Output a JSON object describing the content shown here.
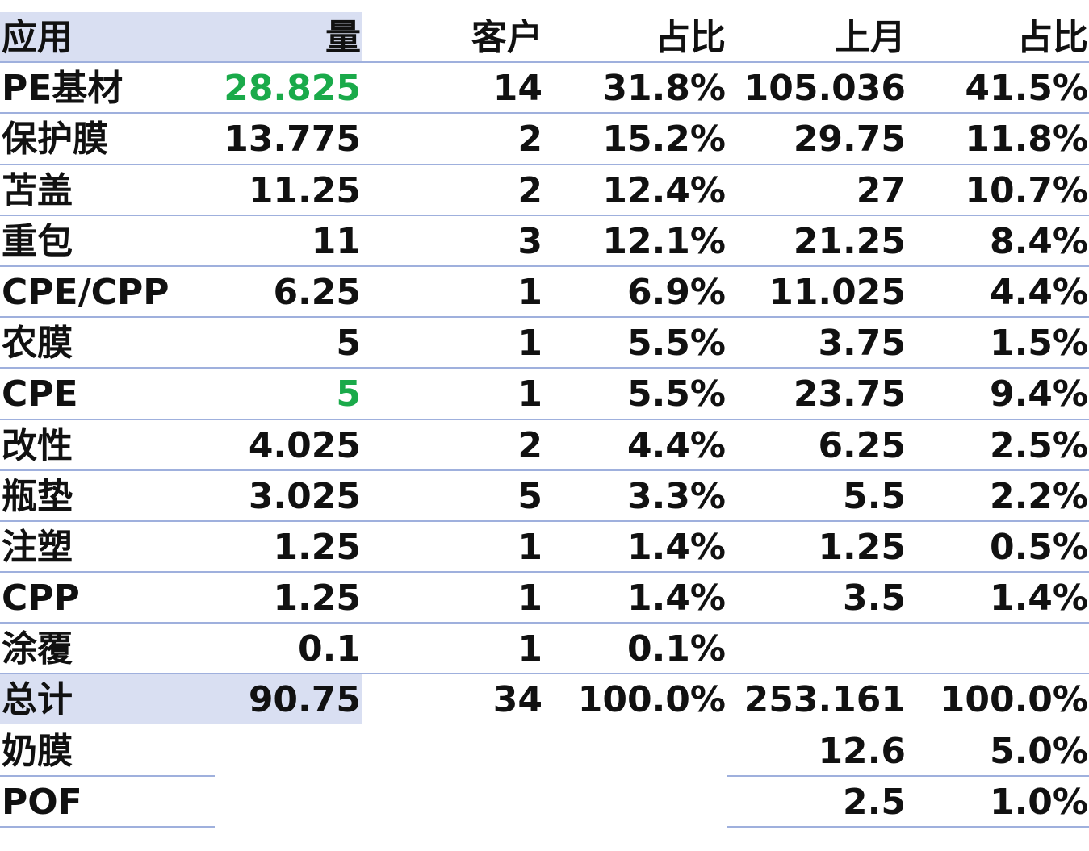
{
  "header": {
    "app": "应用",
    "volume": "量",
    "customers": "客户",
    "share": "占比",
    "last_month": "上月",
    "last_share": "占比"
  },
  "rows": [
    {
      "app": "PE基材",
      "volume": "28.825",
      "customers": "14",
      "share": "31.8%",
      "last_month": "105.036",
      "last_share": "41.5%"
    },
    {
      "app": "保护膜",
      "volume": "13.775",
      "customers": "2",
      "share": "15.2%",
      "last_month": "29.75",
      "last_share": "11.8%"
    },
    {
      "app": "苫盖",
      "volume": "11.25",
      "customers": "2",
      "share": "12.4%",
      "last_month": "27",
      "last_share": "10.7%"
    },
    {
      "app": "重包",
      "volume": "11",
      "customers": "3",
      "share": "12.1%",
      "last_month": "21.25",
      "last_share": "8.4%"
    },
    {
      "app": "CPE/CPP",
      "volume": "6.25",
      "customers": "1",
      "share": "6.9%",
      "last_month": "11.025",
      "last_share": "4.4%"
    },
    {
      "app": "农膜",
      "volume": "5",
      "customers": "1",
      "share": "5.5%",
      "last_month": "3.75",
      "last_share": "1.5%"
    },
    {
      "app": "CPE",
      "volume": "5",
      "customers": "1",
      "share": "5.5%",
      "last_month": "23.75",
      "last_share": "9.4%"
    },
    {
      "app": "改性",
      "volume": "4.025",
      "customers": "2",
      "share": "4.4%",
      "last_month": "6.25",
      "last_share": "2.5%"
    },
    {
      "app": "瓶垫",
      "volume": "3.025",
      "customers": "5",
      "share": "3.3%",
      "last_month": "5.5",
      "last_share": "2.2%"
    },
    {
      "app": "注塑",
      "volume": "1.25",
      "customers": "1",
      "share": "1.4%",
      "last_month": "1.25",
      "last_share": "0.5%"
    },
    {
      "app": "CPP",
      "volume": "1.25",
      "customers": "1",
      "share": "1.4%",
      "last_month": "3.5",
      "last_share": "1.4%"
    },
    {
      "app": "涂覆",
      "volume": "0.1",
      "customers": "1",
      "share": "0.1%",
      "last_month": "",
      "last_share": ""
    }
  ],
  "total": {
    "app": "总计",
    "volume": "90.75",
    "customers": "34",
    "share": "100.0%",
    "last_month": "253.161",
    "last_share": "100.0%"
  },
  "extra_rows": [
    {
      "app": "奶膜",
      "last_month": "12.6",
      "last_share": "5.0%"
    },
    {
      "app": "POF",
      "last_month": "2.5",
      "last_share": "1.0%"
    }
  ],
  "colors": {
    "highlight_green": "#1aaa4a",
    "header_fill": "#d9dff2",
    "border": "#9fb0dd"
  }
}
